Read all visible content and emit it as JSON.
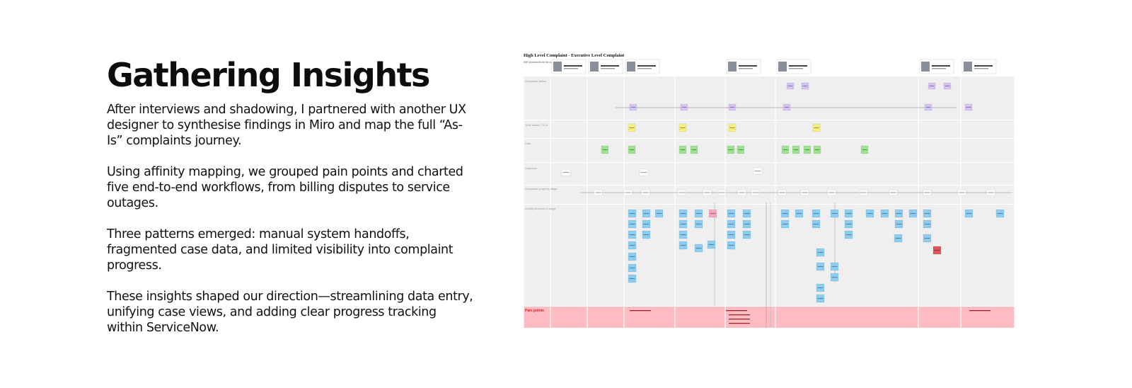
{
  "section": {
    "title": "Gathering Insights",
    "paragraphs": [
      "After interviews and shadowing, I partnered with another UX designer to synthesise findings in Miro and map the full “As-Is” complaints journey.",
      "Using affinity mapping, we grouped pain points and charted five end-to-end workflows, from billing disputes to service outages.",
      "Three patterns emerged: manual system handoffs, fragmented case data, and limited visibility into complaint progress.",
      "These insights shaped our direction—streamlining data entry, unifying case views, and adding clear progress tracking within ServiceNow."
    ]
  },
  "board": {
    "title": "High Level Complaint - Executive Level Complaint",
    "persona_label": "SNP (Included AD for the customer personas)",
    "lanes": [
      "Complaint status",
      "Time scales / SLA",
      "Data",
      "Customer",
      "Complaint progress stage",
      "Activity Analysis in stage",
      "Pain points"
    ],
    "colors": {
      "lane_bg": "#efefef",
      "pain_bg": "#fcbcc1",
      "pain_text": "#d0202a",
      "status_sticky": "#d7c4f4",
      "sla_sticky": "#f5ef7d",
      "data_sticky": "#9ee58f",
      "activity_sticky": "#8ecef0",
      "flag_sticky": "#f3a7c2",
      "alert_sticky": "#e0565c"
    }
  }
}
